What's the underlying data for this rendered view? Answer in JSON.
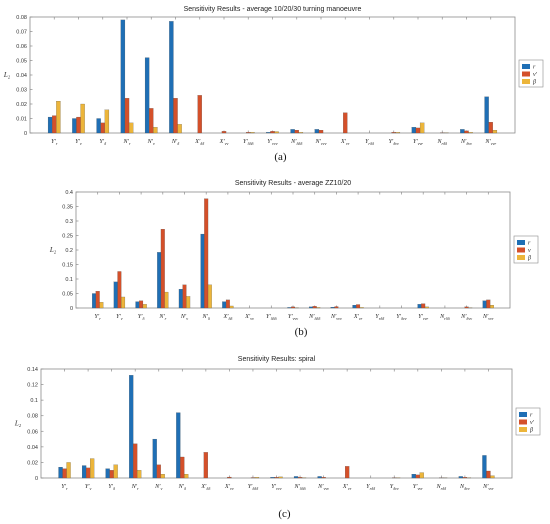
{
  "colors": {
    "r": "#1f6fb5",
    "v": "#d4502a",
    "beta": "#ecb53a"
  },
  "chart_data": [
    {
      "type": "bar",
      "title": "Sensitivity Results - average 10/20/30 turning manoeuvre",
      "ylabel": "L₂",
      "caption": "(a)",
      "legend": [
        "r",
        "v′",
        "β"
      ],
      "legend_placement": "right",
      "ylim": [
        0,
        0.08
      ],
      "yticks": [
        "0",
        "0.01",
        "0.02",
        "0.03",
        "0.04",
        "0.05",
        "0.06",
        "0.07",
        "0.08"
      ],
      "categories": [
        {
          "b": "Y",
          "s": "r",
          "p": "′"
        },
        {
          "b": "Y",
          "s": "v",
          "p": "′"
        },
        {
          "b": "Y",
          "s": "δ",
          "p": "′"
        },
        {
          "b": "N",
          "s": "r",
          "p": "′"
        },
        {
          "b": "N",
          "s": "v",
          "p": "′"
        },
        {
          "b": "N",
          "s": "δ",
          "p": "′"
        },
        {
          "b": "X",
          "s": "δδ",
          "p": "′"
        },
        {
          "b": "X",
          "s": "vv",
          "p": "′"
        },
        {
          "b": "Y",
          "s": "δδδ",
          "p": "′"
        },
        {
          "b": "Y",
          "s": "vvv",
          "p": "′"
        },
        {
          "b": "N",
          "s": "δδδ",
          "p": "′"
        },
        {
          "b": "N",
          "s": "vvv",
          "p": "′"
        },
        {
          "b": "X",
          "s": "vr",
          "p": "′"
        },
        {
          "b": "Y",
          "s": "rδδ",
          "p": ""
        },
        {
          "b": "Y",
          "s": "δvv",
          "p": "′"
        },
        {
          "b": "Y",
          "s": "vvr",
          "p": "′"
        },
        {
          "b": "N",
          "s": "rδδ",
          "p": ""
        },
        {
          "b": "N",
          "s": "δvv",
          "p": "′"
        },
        {
          "b": "N",
          "s": "vvr",
          "p": "′"
        }
      ],
      "series": [
        {
          "name": "r",
          "values": [
            0.011,
            0.01,
            0.01,
            0.078,
            0.052,
            0.077,
            0.0,
            0.0,
            0.0,
            0.0005,
            0.0025,
            0.0025,
            0.0,
            0.0,
            0.0,
            0.004,
            0.0,
            0.0025,
            0.025
          ]
        },
        {
          "name": "v′",
          "values": [
            0.012,
            0.011,
            0.007,
            0.024,
            0.017,
            0.024,
            0.026,
            0.0012,
            0.0005,
            0.0012,
            0.002,
            0.002,
            0.014,
            0.0,
            0.0005,
            0.0035,
            0.0002,
            0.0015,
            0.0075
          ]
        },
        {
          "name": "β",
          "values": [
            0.022,
            0.02,
            0.016,
            0.007,
            0.004,
            0.006,
            0.0,
            0.0,
            0.0005,
            0.001,
            0.0005,
            0.0,
            0.0,
            0.0,
            0.0005,
            0.007,
            0.0002,
            0.0005,
            0.002
          ]
        }
      ]
    },
    {
      "type": "bar",
      "title": "Sensitivity Results - average ZZ10/20",
      "ylabel": "L₂",
      "caption": "(b)",
      "legend": [
        "r",
        "v",
        "β"
      ],
      "legend_placement": "right",
      "ylim": [
        0,
        0.4
      ],
      "yticks": [
        "0",
        "0.05",
        "0.1",
        "0.15",
        "0.2",
        "0.25",
        "0.3",
        "0.35",
        "0.4"
      ],
      "categories": [
        {
          "b": "Y",
          "s": "r",
          "p": "′"
        },
        {
          "b": "Y",
          "s": "v",
          "p": "′"
        },
        {
          "b": "Y",
          "s": "δ",
          "p": "′"
        },
        {
          "b": "N",
          "s": "r",
          "p": "′"
        },
        {
          "b": "N",
          "s": "v",
          "p": "′"
        },
        {
          "b": "N",
          "s": "δ",
          "p": "′"
        },
        {
          "b": "X",
          "s": "δδ",
          "p": "′"
        },
        {
          "b": "X",
          "s": "vv",
          "p": "′"
        },
        {
          "b": "Y",
          "s": "δδδ",
          "p": "′"
        },
        {
          "b": "Y",
          "s": "vvv",
          "p": "′"
        },
        {
          "b": "N",
          "s": "δδδ",
          "p": "′"
        },
        {
          "b": "N",
          "s": "vvv",
          "p": "′"
        },
        {
          "b": "X",
          "s": "vr",
          "p": "′"
        },
        {
          "b": "Y",
          "s": "rδδ",
          "p": ""
        },
        {
          "b": "Y",
          "s": "δvv",
          "p": "′"
        },
        {
          "b": "Y",
          "s": "vvr",
          "p": "′"
        },
        {
          "b": "N",
          "s": "rδδ",
          "p": ""
        },
        {
          "b": "N",
          "s": "δvv",
          "p": "′"
        },
        {
          "b": "N",
          "s": "vvr",
          "p": "′"
        }
      ],
      "series": [
        {
          "name": "r",
          "values": [
            0.05,
            0.09,
            0.022,
            0.192,
            0.065,
            0.255,
            0.022,
            0.0,
            0.0,
            0.002,
            0.004,
            0.003,
            0.01,
            0.0,
            0.0,
            0.013,
            0.0,
            0.0,
            0.025
          ]
        },
        {
          "name": "v",
          "values": [
            0.058,
            0.126,
            0.025,
            0.272,
            0.08,
            0.377,
            0.028,
            0.0,
            0.0,
            0.004,
            0.006,
            0.005,
            0.012,
            0.0,
            0.0,
            0.015,
            0.0,
            0.004,
            0.028
          ]
        },
        {
          "name": "β",
          "values": [
            0.02,
            0.038,
            0.013,
            0.055,
            0.04,
            0.08,
            0.007,
            0.0,
            0.0,
            0.001,
            0.002,
            0.0,
            0.002,
            0.0,
            0.0,
            0.004,
            0.0,
            0.001,
            0.01
          ]
        }
      ]
    },
    {
      "type": "bar",
      "title": "Sensitivity Results: spiral",
      "ylabel": "L₂",
      "caption": "(c)",
      "legend": [
        "r",
        "v′",
        "β"
      ],
      "legend_placement": "right",
      "ylim": [
        0,
        0.14
      ],
      "yticks": [
        "0",
        "0.02",
        "0.04",
        "0.06",
        "0.08",
        "0.1",
        "0.12",
        "0.14"
      ],
      "categories": [
        {
          "b": "Y",
          "s": "r",
          "p": "′"
        },
        {
          "b": "Y",
          "s": "v",
          "p": "′"
        },
        {
          "b": "Y",
          "s": "δ",
          "p": "′"
        },
        {
          "b": "N",
          "s": "r",
          "p": "′"
        },
        {
          "b": "N",
          "s": "v",
          "p": "′"
        },
        {
          "b": "N",
          "s": "δ",
          "p": "′"
        },
        {
          "b": "X",
          "s": "δδ",
          "p": "′"
        },
        {
          "b": "X",
          "s": "vv",
          "p": "′"
        },
        {
          "b": "Y",
          "s": "δδδ",
          "p": "′"
        },
        {
          "b": "Y",
          "s": "vvv",
          "p": "′"
        },
        {
          "b": "N",
          "s": "δδδ",
          "p": "′"
        },
        {
          "b": "N",
          "s": "vvv",
          "p": "′"
        },
        {
          "b": "X",
          "s": "vr",
          "p": "′"
        },
        {
          "b": "Y",
          "s": "rδδ",
          "p": ""
        },
        {
          "b": "Y",
          "s": "δvv",
          "p": ""
        },
        {
          "b": "Y",
          "s": "vvr",
          "p": "′"
        },
        {
          "b": "N",
          "s": "rδδ",
          "p": ""
        },
        {
          "b": "N",
          "s": "δvv",
          "p": ""
        },
        {
          "b": "N",
          "s": "vvr",
          "p": "′"
        }
      ],
      "series": [
        {
          "name": "r",
          "values": [
            0.014,
            0.016,
            0.012,
            0.132,
            0.05,
            0.084,
            0.0,
            0.0,
            0.0,
            0.001,
            0.002,
            0.002,
            0.0,
            0.0,
            0.0,
            0.005,
            0.0,
            0.002,
            0.029
          ]
        },
        {
          "name": "v′",
          "values": [
            0.012,
            0.013,
            0.01,
            0.044,
            0.017,
            0.027,
            0.033,
            0.0012,
            0.0006,
            0.001,
            0.001,
            0.001,
            0.015,
            0.0,
            0.0004,
            0.004,
            0.0002,
            0.001,
            0.009
          ]
        },
        {
          "name": "β",
          "values": [
            0.02,
            0.025,
            0.017,
            0.01,
            0.005,
            0.005,
            0.0,
            0.0,
            0.001,
            0.0015,
            0.0005,
            0.0,
            0.0,
            0.0,
            0.0005,
            0.007,
            0.0002,
            0.0005,
            0.003
          ]
        }
      ]
    }
  ]
}
